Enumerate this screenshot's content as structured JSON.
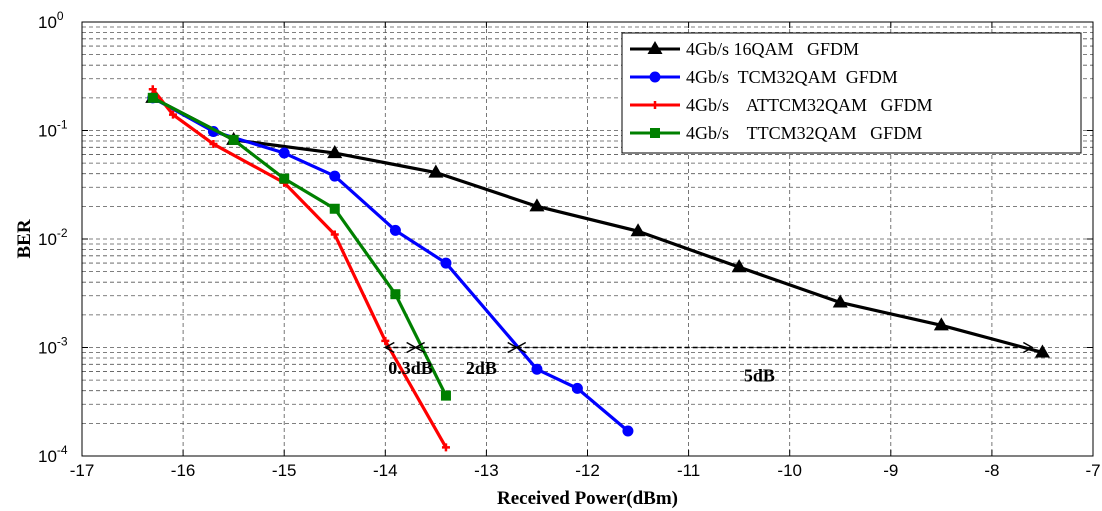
{
  "chart_data": {
    "type": "line",
    "title": "",
    "xlabel": "Received Power(dBm)",
    "ylabel": "BER",
    "xlim": [
      -17,
      -7
    ],
    "ylim": [
      0.0001,
      1
    ],
    "y_scale": "log",
    "grid": true,
    "legend_position": "top-right",
    "x_ticks": [
      "-17",
      "-16",
      "-15",
      "-14",
      "-13",
      "-12",
      "-11",
      "-10",
      "-9",
      "-8",
      "-7"
    ],
    "y_ticks": [
      {
        "base": "10",
        "exp": "-4"
      },
      {
        "base": "10",
        "exp": "-3"
      },
      {
        "base": "10",
        "exp": "-2"
      },
      {
        "base": "10",
        "exp": "-1"
      },
      {
        "base": "10",
        "exp": "0"
      }
    ],
    "series": [
      {
        "name": "4Gb/s 16QAM   GFDM",
        "color": "#000000",
        "marker": "triangle",
        "x": [
          -16.3,
          -15.5,
          -14.5,
          -13.5,
          -12.5,
          -11.5,
          -10.5,
          -9.5,
          -8.5,
          -7.5
        ],
        "y": [
          0.2,
          0.082,
          0.062,
          0.041,
          0.02,
          0.0118,
          0.0055,
          0.0026,
          0.0016,
          0.0009
        ]
      },
      {
        "name": "4Gb/s  TCM32QAM  GFDM",
        "color": "#0000ff",
        "marker": "circle",
        "x": [
          -16.3,
          -15.7,
          -15,
          -14.5,
          -13.9,
          -13.4,
          -12.5,
          -12.1,
          -11.6
        ],
        "y": [
          0.2,
          0.098,
          0.062,
          0.038,
          0.012,
          0.006,
          0.00063,
          0.00042,
          0.00017
        ]
      },
      {
        "name": "4Gb/s    ATTCM32QAM   GFDM",
        "color": "#ff0000",
        "marker": "plus",
        "x": [
          -16.3,
          -16.1,
          -15.7,
          -15,
          -14.5,
          -14,
          -13.4
        ],
        "y": [
          0.24,
          0.14,
          0.075,
          0.033,
          0.011,
          0.00115,
          0.00012
        ]
      },
      {
        "name": "4Gb/s    TTCM32QAM   GFDM",
        "color": "#008000",
        "marker": "square",
        "x": [
          -16.3,
          -15.5,
          -15,
          -14.5,
          -13.9,
          -13.4
        ],
        "y": [
          0.2,
          0.082,
          0.036,
          0.019,
          0.0031,
          0.00036
        ]
      }
    ],
    "annotations": [
      {
        "text": "0.3dB",
        "x": -13.75,
        "y": 0.00065,
        "arrow_from": -14.0,
        "arrow_to": -13.7
      },
      {
        "text": "2dB",
        "x": -13.05,
        "y": 0.00065,
        "arrow_from": -13.7,
        "arrow_to": -12.7
      },
      {
        "text": "5dB",
        "x": -10.3,
        "y": 0.00055,
        "arrow_from": -12.7,
        "arrow_to": -7.6
      }
    ]
  }
}
